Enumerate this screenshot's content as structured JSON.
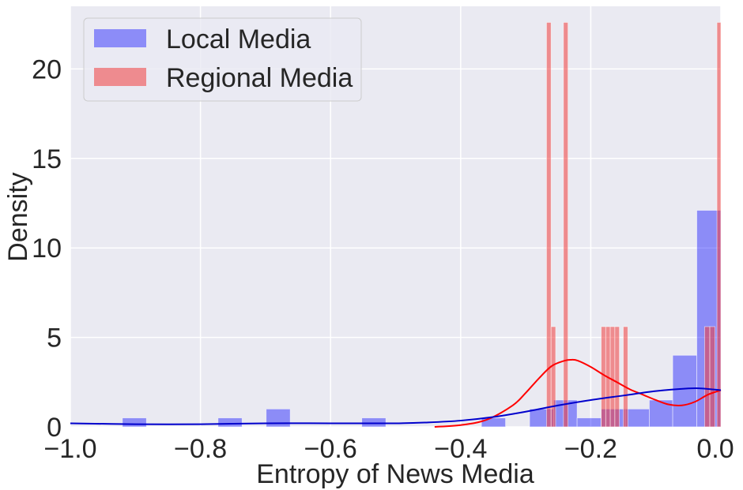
{
  "chart_data": {
    "type": "histogram",
    "xlabel": "Entropy of News Media",
    "ylabel": "Density",
    "xlim": [
      -1.0,
      0.0
    ],
    "ylim": [
      0,
      23.5
    ],
    "x_ticks": [
      "−1.0",
      "−0.8",
      "−0.6",
      "−0.4",
      "−0.2",
      "0.0"
    ],
    "x_tick_values": [
      -1.0,
      -0.8,
      -0.6,
      -0.4,
      -0.2,
      0.0
    ],
    "y_ticks": [
      "0",
      "5",
      "10",
      "15",
      "20"
    ],
    "y_tick_values": [
      0,
      5,
      10,
      15,
      20
    ],
    "grid": true,
    "background": "#eaeaf2",
    "legend_position": "upper-left",
    "series": [
      {
        "name": "Local Media",
        "color": "#0000ff",
        "kde_color": "#0000cc",
        "bins": [
          {
            "x0": -0.92,
            "x1": -0.883,
            "density": 0.5
          },
          {
            "x0": -0.773,
            "x1": -0.736,
            "density": 0.5
          },
          {
            "x0": -0.699,
            "x1": -0.662,
            "density": 1.0
          },
          {
            "x0": -0.552,
            "x1": -0.515,
            "density": 0.5
          },
          {
            "x0": -0.368,
            "x1": -0.331,
            "density": 0.5
          },
          {
            "x0": -0.294,
            "x1": -0.257,
            "density": 1.0
          },
          {
            "x0": -0.257,
            "x1": -0.221,
            "density": 1.5
          },
          {
            "x0": -0.221,
            "x1": -0.184,
            "density": 0.5
          },
          {
            "x0": -0.184,
            "x1": -0.147,
            "density": 1.0
          },
          {
            "x0": -0.147,
            "x1": -0.11,
            "density": 1.0
          },
          {
            "x0": -0.11,
            "x1": -0.074,
            "density": 1.5
          },
          {
            "x0": -0.074,
            "x1": -0.037,
            "density": 4.0
          },
          {
            "x0": -0.037,
            "x1": 0.0,
            "density": 12.1
          }
        ],
        "kde": {
          "x": [
            -1.0,
            -0.9,
            -0.8,
            -0.7,
            -0.6,
            -0.5,
            -0.45,
            -0.4,
            -0.35,
            -0.3,
            -0.25,
            -0.2,
            -0.15,
            -0.1,
            -0.05,
            -0.03,
            0.0
          ],
          "y": [
            0.2,
            0.15,
            0.15,
            0.2,
            0.2,
            0.2,
            0.25,
            0.35,
            0.55,
            0.85,
            1.2,
            1.5,
            1.75,
            2.0,
            2.15,
            2.15,
            2.05
          ]
        }
      },
      {
        "name": "Regional Media",
        "color": "#f03c3c",
        "kde_color": "#ff0000",
        "bins": [
          {
            "x0": -0.268,
            "x1": -0.261,
            "density": 22.6
          },
          {
            "x0": -0.261,
            "x1": -0.254,
            "density": 5.6
          },
          {
            "x0": -0.242,
            "x1": -0.235,
            "density": 22.6
          },
          {
            "x0": -0.184,
            "x1": -0.177,
            "density": 5.6
          },
          {
            "x0": -0.177,
            "x1": -0.17,
            "density": 5.6
          },
          {
            "x0": -0.17,
            "x1": -0.163,
            "density": 5.6
          },
          {
            "x0": -0.163,
            "x1": -0.156,
            "density": 5.6
          },
          {
            "x0": -0.15,
            "x1": -0.143,
            "density": 5.6
          },
          {
            "x0": -0.025,
            "x1": -0.017,
            "density": 5.6
          },
          {
            "x0": -0.017,
            "x1": -0.009,
            "density": 5.6
          },
          {
            "x0": -0.006,
            "x1": 0.0,
            "density": 22.6
          }
        ],
        "kde": {
          "x": [
            -0.44,
            -0.4,
            -0.36,
            -0.32,
            -0.3,
            -0.28,
            -0.26,
            -0.24,
            -0.23,
            -0.22,
            -0.2,
            -0.18,
            -0.16,
            -0.14,
            -0.12,
            -0.1,
            -0.08,
            -0.06,
            -0.04,
            -0.02,
            0.0
          ],
          "y": [
            0.0,
            0.1,
            0.4,
            1.2,
            1.9,
            2.7,
            3.4,
            3.7,
            3.75,
            3.7,
            3.35,
            2.9,
            2.5,
            2.1,
            1.8,
            1.5,
            1.25,
            1.2,
            1.4,
            1.8,
            2.05
          ]
        }
      }
    ]
  }
}
